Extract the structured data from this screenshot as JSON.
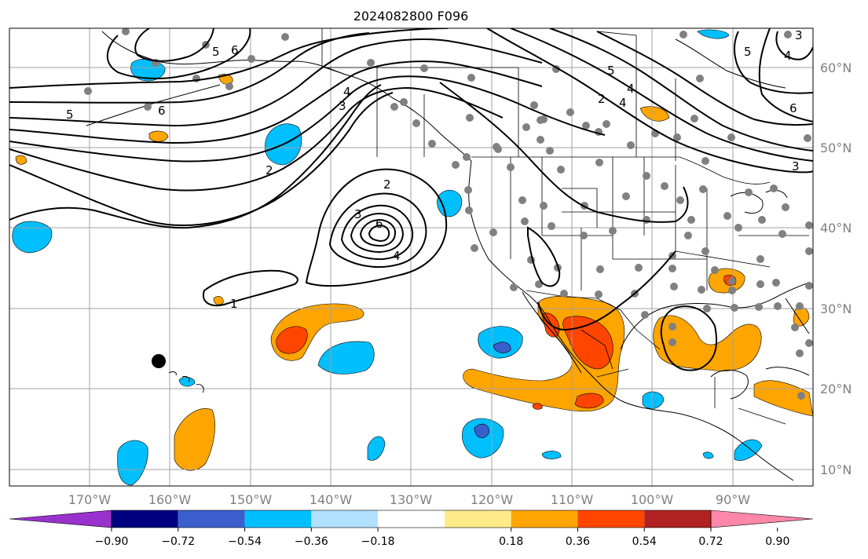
{
  "map": {
    "title": "2024082800 F096",
    "lon_labels": [
      "170°W",
      "160°W",
      "150°W",
      "140°W",
      "130°W",
      "120°W",
      "110°W",
      "100°W",
      "90°W"
    ],
    "lat_labels": [
      "60°N",
      "50°N",
      "40°N",
      "30°N",
      "20°N",
      "10°N"
    ],
    "lon_range": [
      -180,
      -80
    ],
    "lat_range": [
      8,
      65
    ],
    "contour_labels": [
      "5",
      "6",
      "5",
      "6",
      "3",
      "4",
      "2",
      "3",
      "6",
      "4",
      "2",
      "1",
      "5",
      "4",
      "2",
      "4",
      "3",
      "6",
      "5",
      "4",
      "3"
    ],
    "colors": {
      "orange": "#ffa500",
      "red_orange": "#ff4500",
      "light_yellow": "#ffeb8a",
      "deep_sky": "#00bfff",
      "light_blue": "#b2e0ff",
      "royal": "#3a5fcd",
      "stations": "#808080"
    }
  },
  "colorbar": {
    "tick_labels": [
      "−0.90",
      "−0.72",
      "−0.54",
      "−0.36",
      "−0.18",
      "0.18",
      "0.36",
      "0.54",
      "0.72",
      "0.90"
    ],
    "colors": [
      "#9932cc",
      "#000080",
      "#3a5fcd",
      "#00bfff",
      "#b2e0ff",
      "#ffffff",
      "#ffeb8a",
      "#ffa500",
      "#ff4500",
      "#b22222",
      "#ff88aa"
    ]
  }
}
